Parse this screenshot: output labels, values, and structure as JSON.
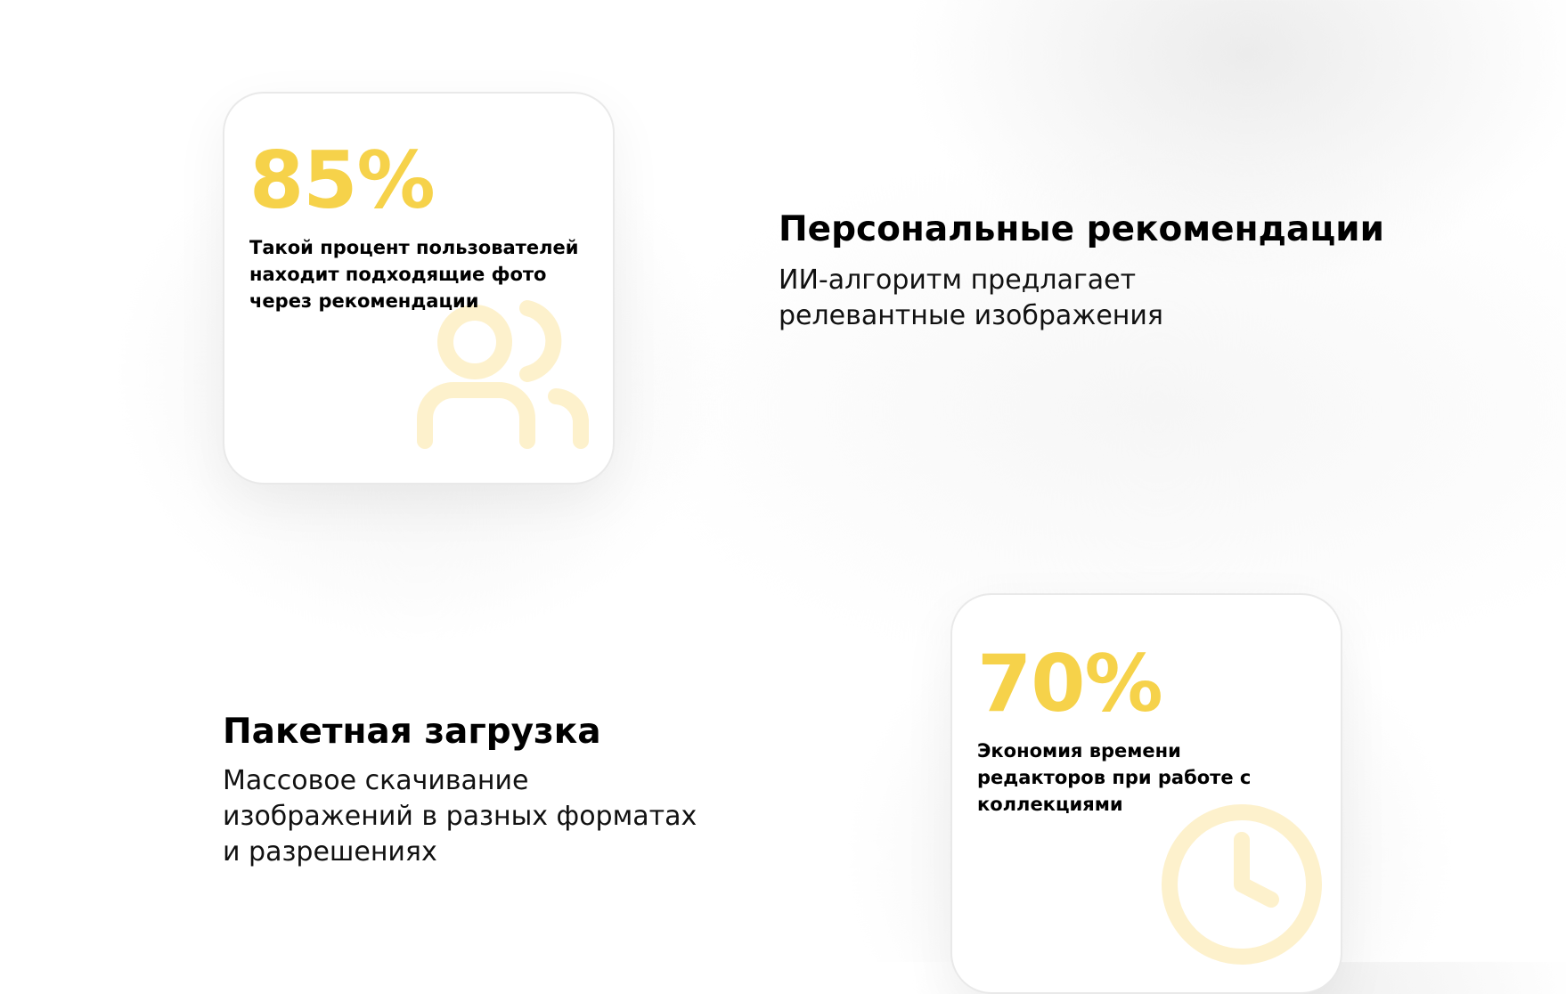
{
  "features": [
    {
      "title": "Персональные рекомендации",
      "subtitle": "ИИ-алгоритм предлагает релевантные изображения"
    },
    {
      "title": "Пакетная загрузка",
      "subtitle": "Массовое скачивание изображений в разных форматах и разрешениях"
    }
  ],
  "stats": [
    {
      "value": "85%",
      "description": "Такой процент пользователей находит подходящие фото через рекомендации",
      "icon": "users-icon"
    },
    {
      "value": "70%",
      "description": "Экономия времени редакторов при работе с коллекциями",
      "icon": "clock-icon"
    }
  ],
  "colors": {
    "accent": "#f6d24a",
    "icon_tint": "#fdf1cc"
  }
}
